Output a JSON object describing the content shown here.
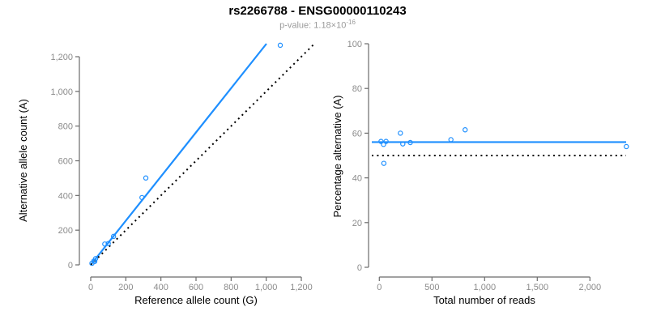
{
  "header": {
    "title": "rs2266788 - ENSG00000110243",
    "pvalue_label": "p-value: 1.18×10",
    "pvalue_exponent": "-16"
  },
  "colors": {
    "accent_blue": "#1E8FFF",
    "reference_black": "#000000",
    "axis_line_gray": "#6b6b6b",
    "tick_label_gray": "#8b8b8b",
    "axis_title_color": "#000000"
  },
  "chart_data": [
    {
      "type": "scatter",
      "name": "allele-counts-scatter",
      "xlabel": "Reference allele count (G)",
      "ylabel": "Alternative allele count (A)",
      "xlim": [
        0,
        1290
      ],
      "ylim": [
        0,
        1290
      ],
      "grid": false,
      "legend": null,
      "xticks": {
        "values": [
          0,
          200,
          400,
          600,
          800,
          1000,
          1200
        ],
        "labels": [
          "0",
          "200",
          "400",
          "600",
          "800",
          "1,000",
          "1,200"
        ]
      },
      "yticks": {
        "values": [
          0,
          200,
          400,
          600,
          800,
          1000,
          1200
        ],
        "labels": [
          "0",
          "200",
          "400",
          "600",
          "800",
          "1,000",
          "1,200"
        ]
      },
      "points": [
        [
          7,
          9
        ],
        [
          18,
          22
        ],
        [
          23,
          20
        ],
        [
          28,
          36
        ],
        [
          80,
          120
        ],
        [
          100,
          123
        ],
        [
          130,
          164
        ],
        [
          292,
          388
        ],
        [
          314,
          501
        ],
        [
          1080,
          1266
        ]
      ],
      "lines": [
        {
          "name": "fit-line",
          "slope": 1.273,
          "intercept": 0,
          "style": "solid",
          "color": "accent_blue"
        },
        {
          "name": "identity-line",
          "slope": 1,
          "intercept": 0,
          "style": "dotted",
          "color": "reference_black"
        }
      ]
    },
    {
      "type": "scatter",
      "name": "percentage-vs-reads-scatter",
      "xlabel": "Total number of reads",
      "ylabel": "Percentage alternative (A)",
      "xlim": [
        0,
        2400
      ],
      "ylim": [
        0,
        100
      ],
      "grid": false,
      "legend": null,
      "xticks": {
        "values": [
          0,
          500,
          1000,
          1500,
          2000
        ],
        "labels": [
          "0",
          "500",
          "1,000",
          "1,500",
          "2,000"
        ]
      },
      "yticks": {
        "values": [
          0,
          20,
          40,
          60,
          80,
          100
        ],
        "labels": [
          "0",
          "20",
          "40",
          "60",
          "80",
          "100"
        ]
      },
      "points": [
        [
          16,
          56.3
        ],
        [
          40,
          55.0
        ],
        [
          43,
          46.5
        ],
        [
          64,
          56.3
        ],
        [
          200,
          60.0
        ],
        [
          223,
          55.2
        ],
        [
          294,
          55.8
        ],
        [
          680,
          57.1
        ],
        [
          815,
          61.5
        ],
        [
          2346,
          54.0
        ]
      ],
      "lines": [
        {
          "name": "fit-line",
          "y": 56,
          "style": "solid",
          "color": "accent_blue"
        },
        {
          "name": "reference-line",
          "y": 50,
          "style": "dotted",
          "color": "reference_black"
        }
      ]
    }
  ]
}
